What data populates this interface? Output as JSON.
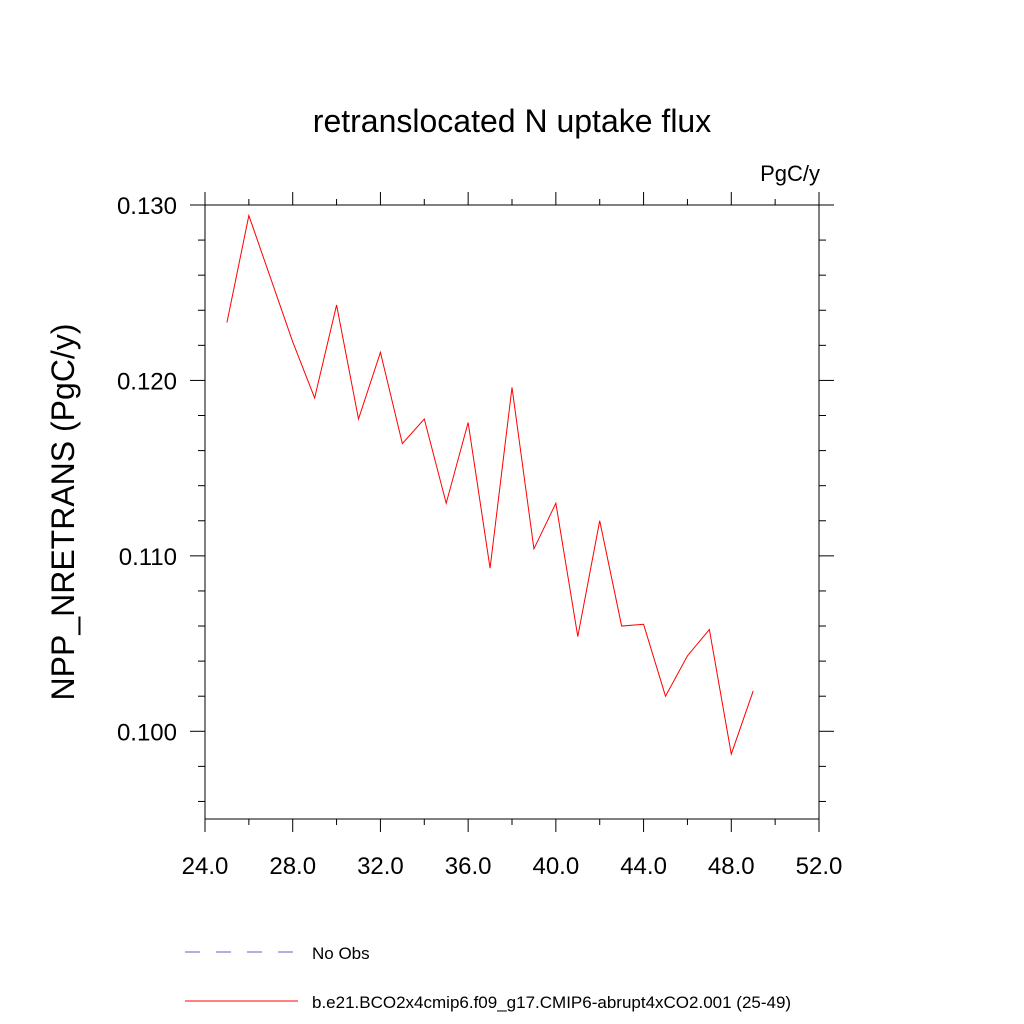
{
  "chart_data": {
    "type": "line",
    "title": "retranslocated N uptake flux",
    "units_label": "PgC/y",
    "xlabel": "",
    "ylabel": "NPP_NRETRANS  (PgC/y)",
    "xlim": [
      24.0,
      52.0
    ],
    "ylim": [
      0.095,
      0.13
    ],
    "x_ticks": [
      24.0,
      28.0,
      32.0,
      36.0,
      40.0,
      44.0,
      48.0,
      52.0
    ],
    "x_tick_labels": [
      "24.0",
      "28.0",
      "32.0",
      "36.0",
      "40.0",
      "44.0",
      "48.0",
      "52.0"
    ],
    "y_ticks": [
      0.1,
      0.11,
      0.12,
      0.13
    ],
    "y_tick_labels": [
      "0.100",
      "0.110",
      "0.120",
      "0.130"
    ],
    "grid": false,
    "legend_position": "bottom",
    "series": [
      {
        "name": "No Obs",
        "color": "#6a5acd",
        "dash": "dashed",
        "x": [],
        "values": []
      },
      {
        "name": "b.e21.BCO2x4cmip6.f09_g17.CMIP6-abrupt4xCO2.001 (25-49)",
        "color": "#ff0000",
        "dash": "solid",
        "x": [
          25,
          26,
          27,
          28,
          29,
          30,
          31,
          32,
          33,
          34,
          35,
          36,
          37,
          38,
          39,
          40,
          41,
          42,
          43,
          44,
          45,
          46,
          47,
          48,
          49
        ],
        "values": [
          0.1233,
          0.1294,
          0.1258,
          0.1222,
          0.119,
          0.1243,
          0.1178,
          0.1216,
          0.1164,
          0.1178,
          0.113,
          0.1176,
          0.1093,
          0.1196,
          0.1104,
          0.113,
          0.1054,
          0.112,
          0.106,
          0.1061,
          0.102,
          0.1043,
          0.1058,
          0.0987,
          0.1023
        ]
      }
    ]
  }
}
